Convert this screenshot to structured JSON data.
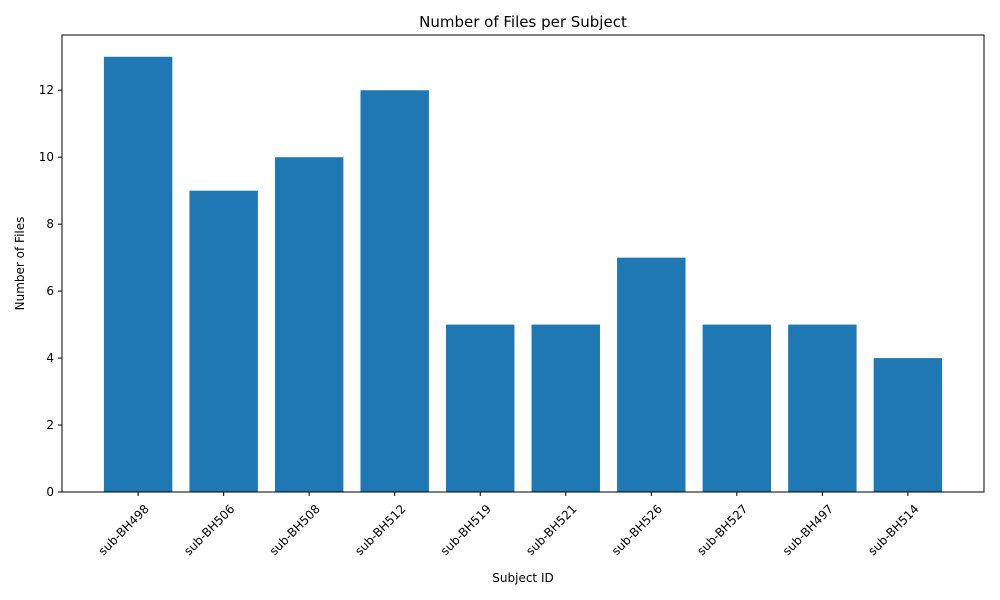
{
  "chart_data": {
    "type": "bar",
    "title": "Number of Files per Subject",
    "xlabel": "Subject ID",
    "ylabel": "Number of Files",
    "categories": [
      "sub-BH498",
      "sub-BH506",
      "sub-BH508",
      "sub-BH512",
      "sub-BH519",
      "sub-BH521",
      "sub-BH526",
      "sub-BH527",
      "sub-BH497",
      "sub-BH514"
    ],
    "values": [
      13,
      9,
      10,
      12,
      5,
      5,
      7,
      5,
      5,
      4
    ],
    "ylim": [
      0,
      13.65
    ],
    "yticks": [
      "0",
      "2",
      "4",
      "6",
      "8",
      "10",
      "12"
    ],
    "bar_color": "#1f77b4",
    "grid": false,
    "legend": "none"
  }
}
